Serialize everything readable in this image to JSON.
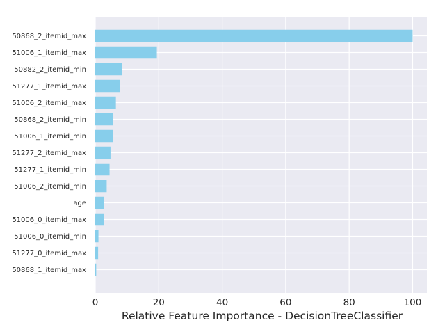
{
  "chart_data": {
    "type": "bar",
    "orientation": "horizontal",
    "xlabel": "Relative Feature Importance - DecisionTreeClassifier",
    "ylabel": "",
    "xlim": [
      0,
      104.5
    ],
    "xticks": [
      0,
      20,
      40,
      60,
      80,
      100
    ],
    "grid": true,
    "colors": {
      "bar": "#87ceeb",
      "background": "#eaeaf2",
      "grid": "#ffffff",
      "text": "#262626"
    },
    "categories": [
      "50868_2_itemid_max",
      "51006_1_itemid_max",
      "50882_2_itemid_min",
      "51277_1_itemid_max",
      "51006_2_itemid_max",
      "50868_2_itemid_min",
      "51006_1_itemid_min",
      "51277_2_itemid_max",
      "51277_1_itemid_min",
      "51006_2_itemid_min",
      "age",
      "51006_0_itemid_max",
      "51006_0_itemid_min",
      "51277_0_itemid_max",
      "50868_1_itemid_max"
    ],
    "values": [
      100,
      19.4,
      8.5,
      7.8,
      6.5,
      5.5,
      5.5,
      4.8,
      4.5,
      3.6,
      2.8,
      2.8,
      1.0,
      0.9,
      0.3
    ]
  }
}
